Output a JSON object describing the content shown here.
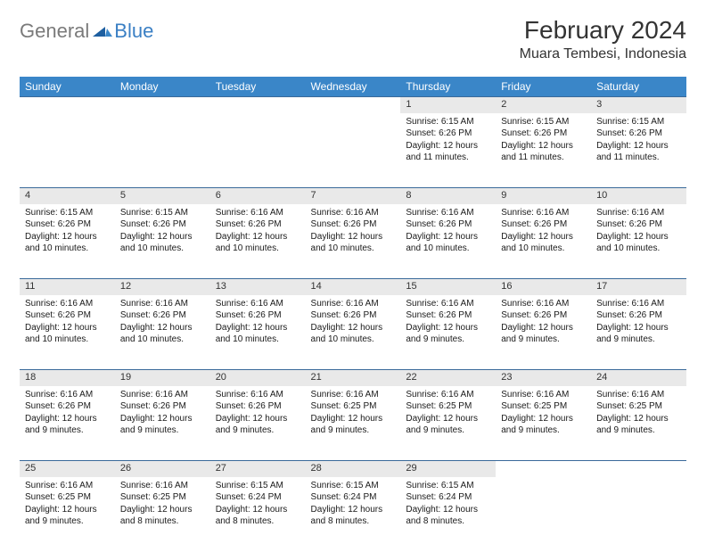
{
  "logo": {
    "general": "General",
    "blue": "Blue"
  },
  "title": "February 2024",
  "location": "Muara Tembesi, Indonesia",
  "colors": {
    "header_bg": "#3a86c8",
    "header_text": "#ffffff",
    "daynum_bg": "#e9e9e9",
    "row_border": "#3a6a9a",
    "logo_gray": "#7a7a7a",
    "logo_blue": "#3a7fc4",
    "body_text": "#1a1a1a",
    "bg": "#ffffff"
  },
  "weekdays": [
    "Sunday",
    "Monday",
    "Tuesday",
    "Wednesday",
    "Thursday",
    "Friday",
    "Saturday"
  ],
  "weeks": [
    [
      null,
      null,
      null,
      null,
      {
        "n": "1",
        "sunrise": "Sunrise: 6:15 AM",
        "sunset": "Sunset: 6:26 PM",
        "day": "Daylight: 12 hours and 11 minutes."
      },
      {
        "n": "2",
        "sunrise": "Sunrise: 6:15 AM",
        "sunset": "Sunset: 6:26 PM",
        "day": "Daylight: 12 hours and 11 minutes."
      },
      {
        "n": "3",
        "sunrise": "Sunrise: 6:15 AM",
        "sunset": "Sunset: 6:26 PM",
        "day": "Daylight: 12 hours and 11 minutes."
      }
    ],
    [
      {
        "n": "4",
        "sunrise": "Sunrise: 6:15 AM",
        "sunset": "Sunset: 6:26 PM",
        "day": "Daylight: 12 hours and 10 minutes."
      },
      {
        "n": "5",
        "sunrise": "Sunrise: 6:15 AM",
        "sunset": "Sunset: 6:26 PM",
        "day": "Daylight: 12 hours and 10 minutes."
      },
      {
        "n": "6",
        "sunrise": "Sunrise: 6:16 AM",
        "sunset": "Sunset: 6:26 PM",
        "day": "Daylight: 12 hours and 10 minutes."
      },
      {
        "n": "7",
        "sunrise": "Sunrise: 6:16 AM",
        "sunset": "Sunset: 6:26 PM",
        "day": "Daylight: 12 hours and 10 minutes."
      },
      {
        "n": "8",
        "sunrise": "Sunrise: 6:16 AM",
        "sunset": "Sunset: 6:26 PM",
        "day": "Daylight: 12 hours and 10 minutes."
      },
      {
        "n": "9",
        "sunrise": "Sunrise: 6:16 AM",
        "sunset": "Sunset: 6:26 PM",
        "day": "Daylight: 12 hours and 10 minutes."
      },
      {
        "n": "10",
        "sunrise": "Sunrise: 6:16 AM",
        "sunset": "Sunset: 6:26 PM",
        "day": "Daylight: 12 hours and 10 minutes."
      }
    ],
    [
      {
        "n": "11",
        "sunrise": "Sunrise: 6:16 AM",
        "sunset": "Sunset: 6:26 PM",
        "day": "Daylight: 12 hours and 10 minutes."
      },
      {
        "n": "12",
        "sunrise": "Sunrise: 6:16 AM",
        "sunset": "Sunset: 6:26 PM",
        "day": "Daylight: 12 hours and 10 minutes."
      },
      {
        "n": "13",
        "sunrise": "Sunrise: 6:16 AM",
        "sunset": "Sunset: 6:26 PM",
        "day": "Daylight: 12 hours and 10 minutes."
      },
      {
        "n": "14",
        "sunrise": "Sunrise: 6:16 AM",
        "sunset": "Sunset: 6:26 PM",
        "day": "Daylight: 12 hours and 10 minutes."
      },
      {
        "n": "15",
        "sunrise": "Sunrise: 6:16 AM",
        "sunset": "Sunset: 6:26 PM",
        "day": "Daylight: 12 hours and 9 minutes."
      },
      {
        "n": "16",
        "sunrise": "Sunrise: 6:16 AM",
        "sunset": "Sunset: 6:26 PM",
        "day": "Daylight: 12 hours and 9 minutes."
      },
      {
        "n": "17",
        "sunrise": "Sunrise: 6:16 AM",
        "sunset": "Sunset: 6:26 PM",
        "day": "Daylight: 12 hours and 9 minutes."
      }
    ],
    [
      {
        "n": "18",
        "sunrise": "Sunrise: 6:16 AM",
        "sunset": "Sunset: 6:26 PM",
        "day": "Daylight: 12 hours and 9 minutes."
      },
      {
        "n": "19",
        "sunrise": "Sunrise: 6:16 AM",
        "sunset": "Sunset: 6:26 PM",
        "day": "Daylight: 12 hours and 9 minutes."
      },
      {
        "n": "20",
        "sunrise": "Sunrise: 6:16 AM",
        "sunset": "Sunset: 6:26 PM",
        "day": "Daylight: 12 hours and 9 minutes."
      },
      {
        "n": "21",
        "sunrise": "Sunrise: 6:16 AM",
        "sunset": "Sunset: 6:25 PM",
        "day": "Daylight: 12 hours and 9 minutes."
      },
      {
        "n": "22",
        "sunrise": "Sunrise: 6:16 AM",
        "sunset": "Sunset: 6:25 PM",
        "day": "Daylight: 12 hours and 9 minutes."
      },
      {
        "n": "23",
        "sunrise": "Sunrise: 6:16 AM",
        "sunset": "Sunset: 6:25 PM",
        "day": "Daylight: 12 hours and 9 minutes."
      },
      {
        "n": "24",
        "sunrise": "Sunrise: 6:16 AM",
        "sunset": "Sunset: 6:25 PM",
        "day": "Daylight: 12 hours and 9 minutes."
      }
    ],
    [
      {
        "n": "25",
        "sunrise": "Sunrise: 6:16 AM",
        "sunset": "Sunset: 6:25 PM",
        "day": "Daylight: 12 hours and 9 minutes."
      },
      {
        "n": "26",
        "sunrise": "Sunrise: 6:16 AM",
        "sunset": "Sunset: 6:25 PM",
        "day": "Daylight: 12 hours and 8 minutes."
      },
      {
        "n": "27",
        "sunrise": "Sunrise: 6:15 AM",
        "sunset": "Sunset: 6:24 PM",
        "day": "Daylight: 12 hours and 8 minutes."
      },
      {
        "n": "28",
        "sunrise": "Sunrise: 6:15 AM",
        "sunset": "Sunset: 6:24 PM",
        "day": "Daylight: 12 hours and 8 minutes."
      },
      {
        "n": "29",
        "sunrise": "Sunrise: 6:15 AM",
        "sunset": "Sunset: 6:24 PM",
        "day": "Daylight: 12 hours and 8 minutes."
      },
      null,
      null
    ]
  ]
}
